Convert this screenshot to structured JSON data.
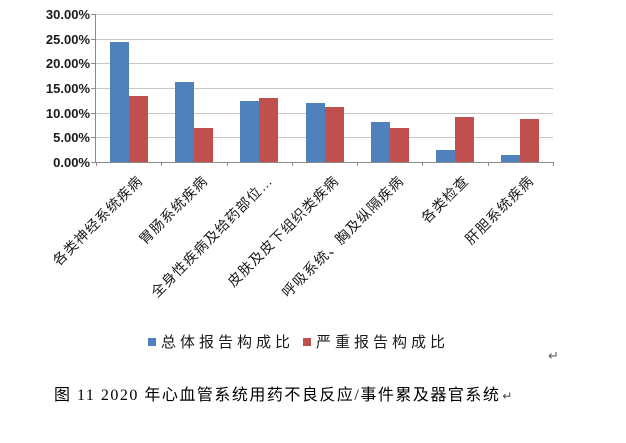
{
  "chart_data": {
    "type": "bar",
    "title": "",
    "xlabel": "",
    "ylabel": "",
    "categories": [
      "各类神经系统疾病",
      "胃肠系统疾病",
      "全身性疾病及给药部位…",
      "皮肤及皮下组织类疾病",
      "呼吸系统、胸及纵隔疾病",
      "各类检查",
      "肝胆系统疾病"
    ],
    "series": [
      {
        "name": "总体报告构成比",
        "color": "#4F81BD",
        "values": [
          24.3,
          16.2,
          12.3,
          12.0,
          8.2,
          2.5,
          1.4
        ]
      },
      {
        "name": "严重报告构成比",
        "color": "#C0504D",
        "values": [
          13.3,
          6.9,
          13.0,
          11.2,
          6.8,
          9.1,
          8.7
        ]
      }
    ],
    "values_unit": "%",
    "ylim": [
      0,
      30
    ],
    "y_tick_step": 5,
    "y_tick_labels": [
      "30.00%",
      "25.00%",
      "20.00%",
      "15.00%",
      "10.00%",
      "5.00%",
      "0.00%"
    ],
    "grid": true,
    "legend_position": "bottom",
    "axis_color": "#8a8a8a",
    "gridline_color": "#c7c7c7"
  },
  "caption": {
    "text": "图 11  2020 年心血管系统用药不良反应/事件累及器官系统"
  },
  "marks": {
    "paragraph_return": "↵"
  }
}
